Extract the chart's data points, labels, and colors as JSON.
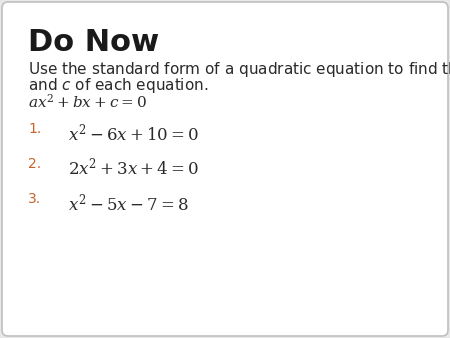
{
  "title": "Do Now",
  "background_color": "#e8e8e8",
  "box_color": "#ffffff",
  "title_color": "#1a1a1a",
  "title_fontsize": 22,
  "body_fontsize": 11,
  "eq_fontsize": 12,
  "number_color": "#c8622a",
  "text_color": "#2a2a2a",
  "standard_form": "$ax^2 + bx + c = 0$",
  "equations": [
    "$x^2 - 6x + 10 = 0$",
    "$2x^2 + 3x + 4 = 0$",
    "$x^2 - 5x - 7 = 8$"
  ],
  "numbers": [
    "1.",
    "2.",
    "3."
  ]
}
